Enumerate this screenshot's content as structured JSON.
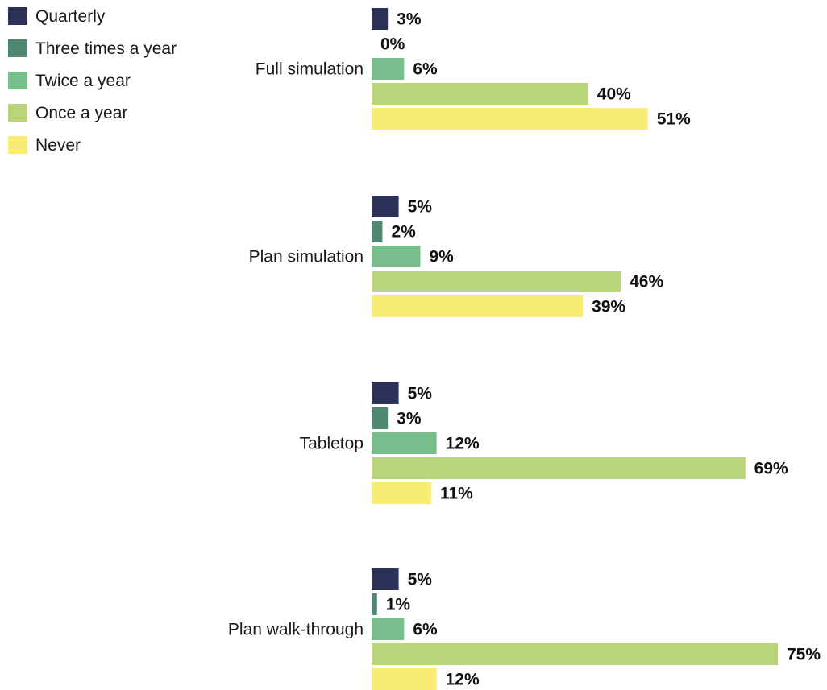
{
  "chart_data": {
    "type": "bar",
    "orientation": "horizontal",
    "categories": [
      "Full simulation",
      "Plan simulation",
      "Tabletop",
      "Plan walk-through"
    ],
    "series": [
      {
        "name": "Quarterly",
        "color": "#2b3157",
        "values": [
          3,
          5,
          5,
          5
        ]
      },
      {
        "name": "Three times a year",
        "color": "#4f8870",
        "values": [
          0,
          2,
          3,
          1
        ]
      },
      {
        "name": "Twice a year",
        "color": "#78bd8c",
        "values": [
          6,
          9,
          12,
          6
        ]
      },
      {
        "name": "Once a year",
        "color": "#b8d57a",
        "values": [
          40,
          46,
          69,
          75
        ]
      },
      {
        "name": "Never",
        "color": "#f8ec74",
        "values": [
          51,
          39,
          11,
          12
        ]
      }
    ],
    "value_suffix": "%",
    "legend_position": "top-left",
    "grid": false,
    "xlim": [
      0,
      75
    ]
  }
}
